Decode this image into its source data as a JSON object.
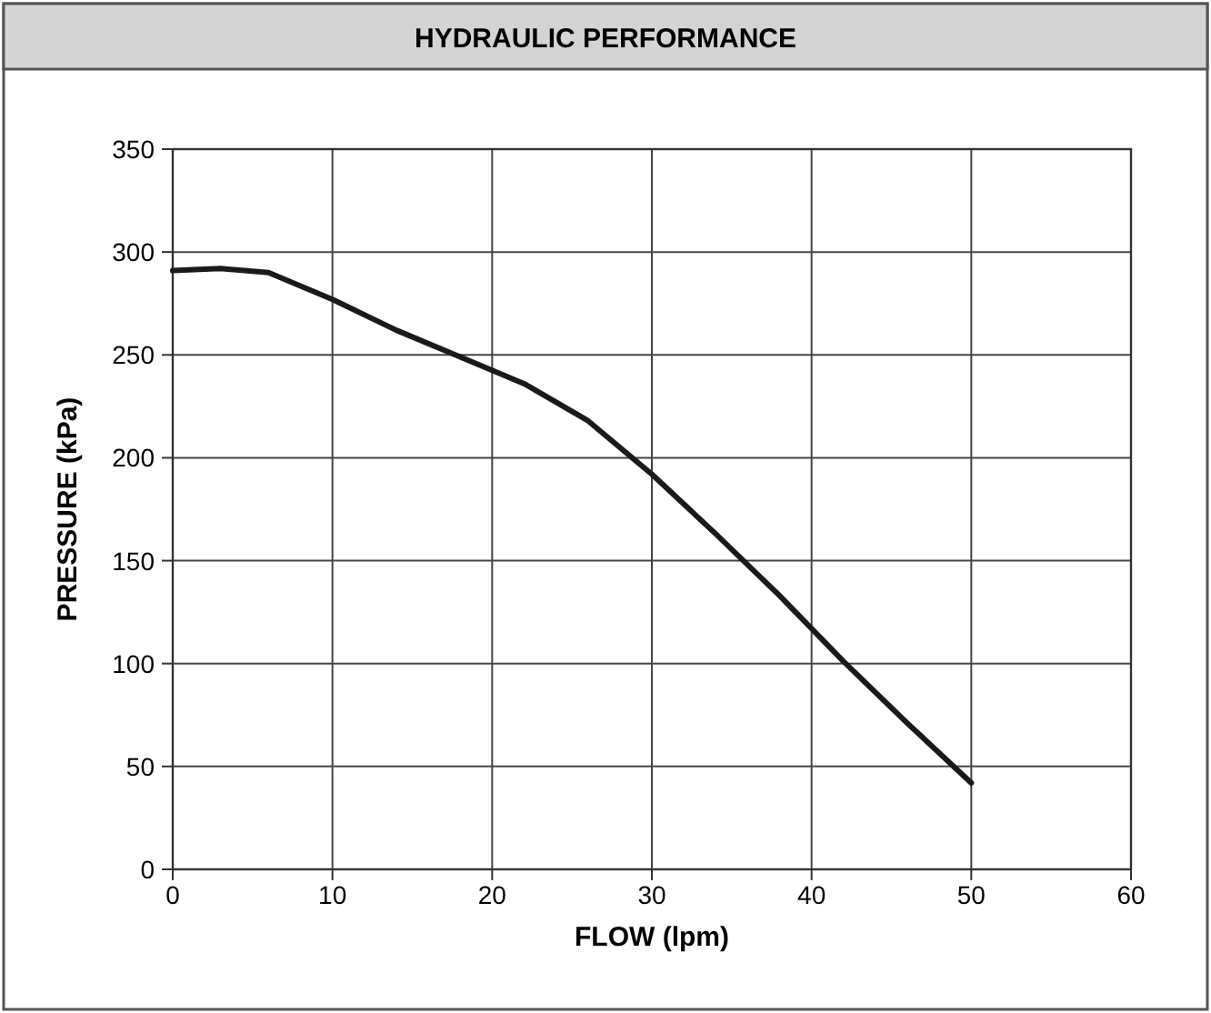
{
  "chart_data": {
    "type": "line",
    "title": "HYDRAULIC PERFORMANCE",
    "xlabel": "FLOW (lpm)",
    "ylabel": "PRESSURE (kPa)",
    "series": [
      {
        "color": "#1a1a1a",
        "x": [
          0,
          3,
          6,
          10,
          14,
          18,
          22,
          26,
          30,
          34,
          38,
          42,
          46,
          50
        ],
        "values": [
          291,
          292,
          290,
          277,
          262,
          249,
          236,
          218,
          192,
          163,
          133,
          101,
          71,
          42
        ]
      }
    ],
    "xlim": [
      0,
      60
    ],
    "xticks": [
      0,
      10,
      20,
      30,
      40,
      50,
      60
    ],
    "ylim": [
      0,
      350
    ],
    "yticks": [
      0,
      50,
      100,
      150,
      200,
      250,
      300,
      350
    ],
    "grid": true,
    "marker": "none",
    "line_style": "solid"
  }
}
